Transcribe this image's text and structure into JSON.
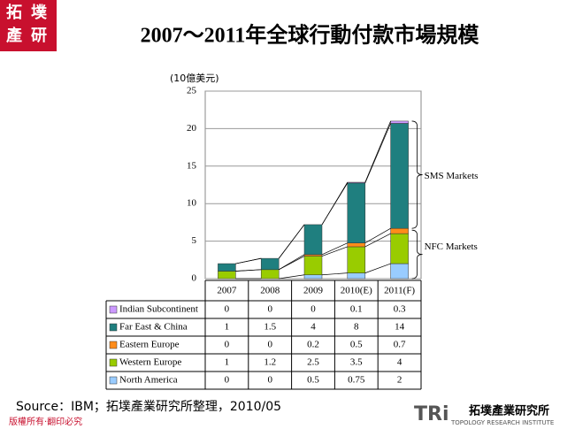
{
  "logo": [
    "拓",
    "墣",
    "產",
    "研"
  ],
  "chart_data": {
    "type": "bar",
    "stacked": true,
    "title": "2007～2011年全球行動付款市場規模",
    "y_unit": "(10億美元)",
    "categories": [
      "2007",
      "2008",
      "2009",
      "2010(E)",
      "2011(F)"
    ],
    "series": [
      {
        "name": "North America",
        "color": "#99ccff",
        "values": [
          0,
          0,
          0.5,
          0.75,
          2
        ]
      },
      {
        "name": "Western Europe",
        "color": "#99cc00",
        "values": [
          1,
          1.2,
          2.5,
          3.5,
          4
        ]
      },
      {
        "name": "Eastern Europe",
        "color": "#ff8c1a",
        "values": [
          0,
          0,
          0.2,
          0.5,
          0.7
        ]
      },
      {
        "name": "Far East & China",
        "color": "#1f7f7f",
        "values": [
          1,
          1.5,
          4,
          8,
          14
        ]
      },
      {
        "name": "Indian Subcontinent",
        "color": "#cc99ff",
        "values": [
          0,
          0,
          0,
          0.1,
          0.3
        ]
      }
    ],
    "ylim": [
      0,
      25
    ],
    "yticks": [
      0,
      5,
      10,
      15,
      20,
      25
    ],
    "grid": true,
    "annotations": [
      "SMS Markets",
      "NFC Markets"
    ]
  },
  "source": "Source：IBM；拓墣產業研究所整理，2010/05",
  "copyright": "版權所有‧翻印必究",
  "org": {
    "mark": "TRi",
    "name": "拓墣產業研究所",
    "english": "TOPOLOGY RESEARCH INSTITUTE"
  }
}
